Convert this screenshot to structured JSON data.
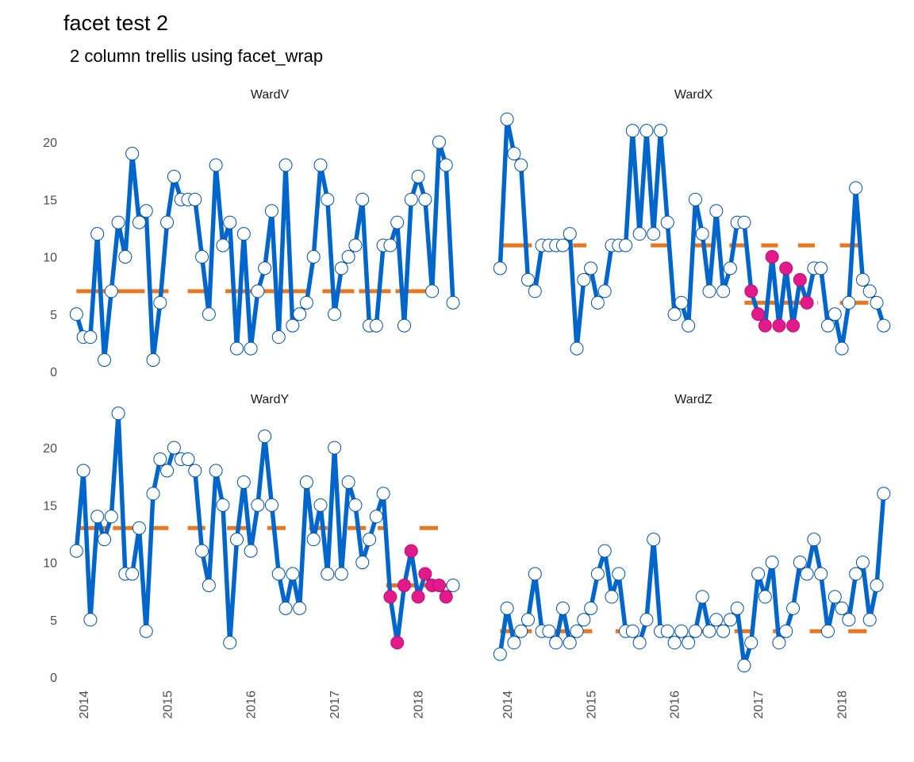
{
  "chart_data": {
    "type": "line",
    "layout": "facet_wrap",
    "columns": 2,
    "title": "facet test 2",
    "subtitle": "2 column trellis using facet_wrap",
    "x_ticks": [
      "2014",
      "2015",
      "2016",
      "2017",
      "2018"
    ],
    "x_range": [
      2013.86,
      2018.6
    ],
    "y_ticks": [
      0,
      5,
      10,
      15,
      20
    ],
    "y_range": [
      0,
      23.4
    ],
    "grid": false,
    "x_tick_rotation": -90,
    "colors": {
      "line": "#0066cc",
      "point_fill": "#ffffff",
      "point_stroke": "#0050a0",
      "highlight_fill": "#e31a8c",
      "highlight_stroke": "#b3146c",
      "median_line": "#e87722"
    },
    "panels": [
      {
        "name": "WardV",
        "values": [
          5,
          3,
          3,
          12,
          1,
          7,
          13,
          10,
          19,
          13,
          14,
          1,
          6,
          13,
          17,
          15,
          15,
          15,
          10,
          5,
          18,
          11,
          13,
          2,
          12,
          2,
          7,
          9,
          14,
          3,
          18,
          4,
          5,
          6,
          10,
          18,
          15,
          5,
          9,
          10,
          11,
          15,
          4,
          4,
          11,
          11,
          13,
          4,
          15,
          17,
          15,
          7,
          20,
          18,
          6
        ],
        "highlight": [],
        "median_segments": [
          {
            "x_start": 2013.92,
            "x_end": 2015.02,
            "value": 7
          },
          {
            "x_start": 2015.25,
            "x_end": 2015.5,
            "value": 7
          },
          {
            "x_start": 2015.7,
            "x_end": 2016.28,
            "value": 7
          },
          {
            "x_start": 2016.38,
            "x_end": 2016.7,
            "value": 7
          },
          {
            "x_start": 2016.86,
            "x_end": 2018.25,
            "value": 7
          }
        ]
      },
      {
        "name": "WardX",
        "values": [
          9,
          22,
          19,
          18,
          8,
          7,
          11,
          11,
          11,
          11,
          12,
          2,
          8,
          9,
          6,
          7,
          11,
          11,
          11,
          21,
          12,
          21,
          12,
          21,
          13,
          5,
          6,
          4,
          15,
          12,
          7,
          14,
          7,
          9,
          13,
          13,
          7,
          5,
          4,
          10,
          4,
          9,
          4,
          8,
          6,
          9,
          9,
          4,
          5,
          2,
          6,
          16,
          8,
          7,
          6,
          4
        ],
        "highlight": [
          36,
          37,
          38,
          39,
          40,
          41,
          42,
          43,
          44
        ],
        "median_segments": [
          {
            "x_start": 2013.92,
            "x_end": 2014.95,
            "value": 11
          },
          {
            "x_start": 2015.25,
            "x_end": 2015.45,
            "value": 11
          },
          {
            "x_start": 2015.72,
            "x_end": 2015.95,
            "value": 11
          },
          {
            "x_start": 2016.24,
            "x_end": 2016.45,
            "value": 11
          },
          {
            "x_start": 2016.66,
            "x_end": 2016.88,
            "value": 11
          },
          {
            "x_start": 2017.04,
            "x_end": 2017.24,
            "value": 11
          },
          {
            "x_start": 2017.48,
            "x_end": 2017.68,
            "value": 11
          },
          {
            "x_start": 2017.98,
            "x_end": 2018.24,
            "value": 11
          },
          {
            "x_start": 2016.84,
            "x_end": 2017.72,
            "value": 6
          },
          {
            "x_start": 2017.98,
            "x_end": 2018.32,
            "value": 6
          }
        ]
      },
      {
        "name": "WardY",
        "values": [
          11,
          18,
          5,
          14,
          12,
          14,
          23,
          9,
          9,
          13,
          4,
          16,
          19,
          18,
          20,
          19,
          19,
          18,
          11,
          8,
          18,
          15,
          3,
          12,
          17,
          11,
          15,
          21,
          15,
          9,
          6,
          9,
          6,
          17,
          12,
          15,
          9,
          20,
          9,
          17,
          15,
          10,
          12,
          14,
          16,
          7,
          3,
          8,
          11,
          7,
          9,
          8,
          8,
          7,
          8
        ],
        "highlight": [
          45,
          46,
          47,
          48,
          49,
          50,
          51,
          52,
          53
        ],
        "median_segments": [
          {
            "x_start": 2013.92,
            "x_end": 2015.02,
            "value": 13
          },
          {
            "x_start": 2015.25,
            "x_end": 2015.46,
            "value": 13
          },
          {
            "x_start": 2015.72,
            "x_end": 2015.95,
            "value": 13
          },
          {
            "x_start": 2016.2,
            "x_end": 2016.42,
            "value": 13
          },
          {
            "x_start": 2016.7,
            "x_end": 2016.92,
            "value": 13
          },
          {
            "x_start": 2017.16,
            "x_end": 2017.38,
            "value": 13
          },
          {
            "x_start": 2017.52,
            "x_end": 2017.62,
            "value": 13
          },
          {
            "x_start": 2018.02,
            "x_end": 2018.24,
            "value": 13
          },
          {
            "x_start": 2017.62,
            "x_end": 2018.38,
            "value": 8
          }
        ]
      },
      {
        "name": "WardZ",
        "values": [
          2,
          6,
          3,
          4,
          5,
          9,
          4,
          4,
          3,
          6,
          3,
          4,
          5,
          6,
          9,
          11,
          7,
          9,
          4,
          4,
          3,
          5,
          12,
          4,
          4,
          3,
          4,
          3,
          4,
          7,
          4,
          5,
          4,
          5,
          6,
          1,
          3,
          9,
          7,
          10,
          3,
          4,
          6,
          10,
          9,
          12,
          9,
          4,
          7,
          6,
          5,
          9,
          10,
          5,
          8,
          16
        ],
        "highlight": [],
        "median_segments": [
          {
            "x_start": 2013.92,
            "x_end": 2015.02,
            "value": 4
          },
          {
            "x_start": 2015.3,
            "x_end": 2015.5,
            "value": 4
          },
          {
            "x_start": 2015.76,
            "x_end": 2016.0,
            "value": 4
          },
          {
            "x_start": 2016.24,
            "x_end": 2016.46,
            "value": 4
          },
          {
            "x_start": 2016.72,
            "x_end": 2016.94,
            "value": 4
          },
          {
            "x_start": 2017.18,
            "x_end": 2017.4,
            "value": 4
          },
          {
            "x_start": 2017.62,
            "x_end": 2017.84,
            "value": 4
          },
          {
            "x_start": 2018.08,
            "x_end": 2018.3,
            "value": 4
          }
        ]
      }
    ]
  }
}
